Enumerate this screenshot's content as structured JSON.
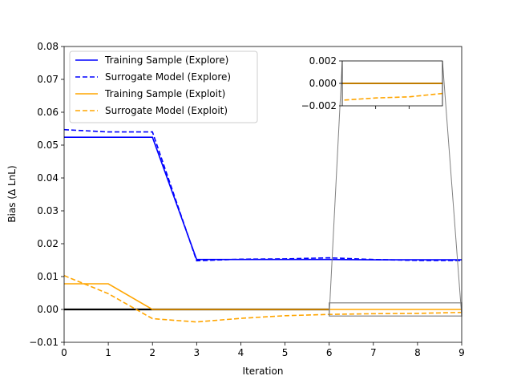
{
  "chart_data": {
    "type": "line",
    "xlabel": "Iteration",
    "ylabel": "Bias (Δ LnL)",
    "xlim": [
      0,
      9
    ],
    "ylim": [
      -0.01,
      0.08
    ],
    "x_ticks": [
      "0",
      "1",
      "2",
      "3",
      "4",
      "5",
      "6",
      "7",
      "8",
      "9"
    ],
    "y_ticks": [
      "−0.01",
      "0.00",
      "0.01",
      "0.02",
      "0.03",
      "0.04",
      "0.05",
      "0.06",
      "0.07",
      "0.08"
    ],
    "legend_position": "top-left",
    "grid": false,
    "baseline": 0,
    "series": [
      {
        "name": "Training Sample (Explore)",
        "color": "#0000ff",
        "style": "solid",
        "x": [
          0,
          1,
          2,
          3,
          4,
          5,
          6,
          7,
          8,
          9
        ],
        "y": [
          0.0524,
          0.0524,
          0.0524,
          0.0152,
          0.0152,
          0.0152,
          0.0152,
          0.0151,
          0.0151,
          0.0151
        ]
      },
      {
        "name": "Surrogate Model (Explore)",
        "color": "#0000ff",
        "style": "dashed",
        "x": [
          0,
          1,
          2,
          3,
          4,
          5,
          6,
          7,
          8,
          9
        ],
        "y": [
          0.0547,
          0.054,
          0.054,
          0.0148,
          0.0153,
          0.0154,
          0.0157,
          0.0152,
          0.0149,
          0.0149
        ]
      },
      {
        "name": "Training Sample (Exploit)",
        "color": "#ffa500",
        "style": "solid",
        "x": [
          0,
          1,
          2,
          3,
          4,
          5,
          6,
          7,
          8,
          9
        ],
        "y": [
          0.0078,
          0.0078,
          0.0,
          0.0,
          0.0,
          0.0,
          0.0,
          0.0,
          0.0,
          0.0
        ]
      },
      {
        "name": "Surrogate Model (Exploit)",
        "color": "#ffa500",
        "style": "dashed",
        "x": [
          0,
          1,
          2,
          3,
          4,
          5,
          6,
          7,
          8,
          9
        ],
        "y": [
          0.0103,
          0.0048,
          -0.0028,
          -0.0038,
          -0.0027,
          -0.0019,
          -0.0015,
          -0.0013,
          -0.0012,
          -0.0009
        ]
      }
    ],
    "inset": {
      "xlim": [
        6,
        9
      ],
      "ylim": [
        -0.002,
        0.002
      ],
      "y_ticks": [
        "0.002",
        "0.000",
        "−0.002"
      ]
    }
  }
}
